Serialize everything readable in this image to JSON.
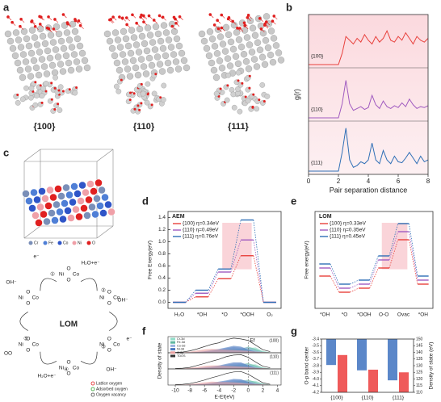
{
  "panel_labels": [
    "a",
    "b",
    "c",
    "d",
    "e",
    "f",
    "g"
  ],
  "panel_a": {
    "facets": [
      "{100}",
      "{110}",
      "{111}"
    ]
  },
  "panel_c": {
    "legend": [
      {
        "name": "Cr",
        "color": "#7a8fb8"
      },
      {
        "name": "Fe",
        "color": "#4f7fd6"
      },
      {
        "name": "Co",
        "color": "#2f55c8"
      },
      {
        "name": "Ni",
        "color": "#f0a0a8"
      },
      {
        "name": "O",
        "color": "#e02020"
      }
    ]
  },
  "lom_cycle": {
    "title": "LOM",
    "atoms": [
      "Ni",
      "Co",
      "O"
    ],
    "annotations": [
      "e⁻",
      "OH⁻",
      "H₂O+e⁻",
      "OH⁻",
      "e⁻",
      "OH⁻",
      "H₂O+e⁻",
      "OO"
    ],
    "steps": [
      "①",
      "②",
      "③",
      "④",
      "⑤"
    ],
    "legend": [
      {
        "name": "Lattice oxygen",
        "color": "#e02020"
      },
      {
        "name": "Adsorbed oxygen",
        "color": "#30a030"
      },
      {
        "name": "Oxygen vacancy",
        "color": "#444444"
      }
    ]
  },
  "chart_data": [
    {
      "type": "line",
      "ylabel": "g(r)",
      "xlabel": "Pair separation distance",
      "xlim": [
        0,
        8
      ],
      "xticks": [
        0,
        2,
        4,
        6,
        8
      ],
      "ylim": [
        0,
        5
      ],
      "x": [
        0,
        0.25,
        0.5,
        0.75,
        1,
        1.25,
        1.5,
        1.75,
        2,
        2.25,
        2.5,
        2.75,
        3,
        3.25,
        3.5,
        3.75,
        4,
        4.25,
        4.5,
        4.75,
        5,
        5.25,
        5.5,
        5.75,
        6,
        6.25,
        6.5,
        6.75,
        7,
        7.25,
        7.5,
        7.75,
        8
      ],
      "series": [
        {
          "name": "{100}",
          "color": "#e8413c",
          "values": [
            0,
            0,
            0,
            0,
            0,
            0,
            0,
            0,
            0,
            1.2,
            3.0,
            2.6,
            2.2,
            2.8,
            2.4,
            3.2,
            2.6,
            2.2,
            3.0,
            2.4,
            2.8,
            3.6,
            2.6,
            2.4,
            3.0,
            2.6,
            3.4,
            2.8,
            2.2,
            3.0,
            2.6,
            2.4,
            2.8
          ]
        },
        {
          "name": "{110}",
          "color": "#a05bc0",
          "values": [
            0,
            0,
            0,
            0,
            0,
            0,
            0,
            0,
            0,
            1.5,
            4.0,
            1.5,
            0.8,
            1.0,
            1.2,
            0.9,
            1.1,
            2.4,
            1.4,
            1.0,
            1.8,
            1.2,
            1.0,
            1.3,
            1.1,
            1.6,
            1.2,
            2.0,
            1.4,
            1.0,
            1.2,
            1.1,
            1.3
          ]
        },
        {
          "name": "{111}",
          "color": "#2f6fb6",
          "values": [
            0,
            0,
            0,
            0,
            0,
            0,
            0,
            0,
            0,
            2.0,
            4.6,
            1.2,
            0.4,
            0.6,
            1.0,
            0.8,
            1.2,
            3.0,
            1.2,
            0.8,
            2.2,
            1.2,
            0.8,
            1.6,
            1.0,
            0.9,
            1.4,
            2.0,
            1.4,
            0.8,
            1.6,
            1.0,
            1.2
          ]
        }
      ]
    },
    {
      "type": "step",
      "label": "AEM",
      "ylabel": "Free Energy(eV)",
      "categories": [
        "H₂O",
        "*OH",
        "*O",
        "*OOH",
        "O₂"
      ],
      "ylim": [
        -0.1,
        1.5
      ],
      "yticks": [
        {
          "value": 0,
          "label": "0.0"
        },
        0.2,
        0.4,
        0.6,
        0.8,
        {
          "value": 1,
          "label": "1.0"
        },
        1.2,
        1.4
      ],
      "series": [
        {
          "name": "{100} η=0.34eV",
          "color": "#e8413c",
          "values": [
            0,
            0.09,
            0.39,
            0.77,
            0
          ]
        },
        {
          "name": "{110} η=0.49eV",
          "color": "#a05bc0",
          "values": [
            0,
            0.15,
            0.5,
            1.03,
            0
          ]
        },
        {
          "name": "{111} η=0.76eV",
          "color": "#2f6fb6",
          "values": [
            0,
            0.2,
            0.55,
            1.36,
            0
          ]
        }
      ]
    },
    {
      "type": "step",
      "label": "LOM",
      "ylabel": "Free energy(eV)",
      "categories": [
        "*OH",
        "*O",
        "*OOH",
        "O-O",
        "Ovac",
        "*OH"
      ],
      "ylim": [
        -0.2,
        1.0
      ],
      "yticks": [],
      "series": [
        {
          "name": "{100} η=0.33eV",
          "color": "#e8413c",
          "values": [
            0.2,
            0.0,
            0.05,
            0.3,
            0.65,
            0.1
          ]
        },
        {
          "name": "{110} η=0.35eV",
          "color": "#a05bc0",
          "values": [
            0.3,
            0.05,
            0.1,
            0.4,
            0.75,
            0.15
          ]
        },
        {
          "name": "{111} η=0.45eV",
          "color": "#2f6fb6",
          "values": [
            0.35,
            0.1,
            0.15,
            0.45,
            0.85,
            0.2
          ]
        }
      ]
    },
    {
      "type": "area",
      "ylabel": "Density of state",
      "xlabel": "E-Ef(eV)",
      "annotation": {
        "text": "Ef",
        "x": 0
      },
      "xlim": [
        -11,
        4.5
      ],
      "xticks": [
        -10,
        -8,
        -6,
        -4,
        -2,
        0,
        2,
        4
      ],
      "ylim": [
        0,
        4.2
      ],
      "x": [
        -10,
        -9,
        -8,
        -7,
        -6,
        -5,
        -4,
        -3,
        -2,
        -1,
        0,
        1,
        2,
        3
      ],
      "legend": [
        {
          "name": "Cr-3d",
          "color": "#8fdcc8"
        },
        {
          "name": "Fe-3d",
          "color": "#5fb7a0"
        },
        {
          "name": "Co-3d",
          "color": "#9cb4e0"
        },
        {
          "name": "Ni-3d",
          "color": "#4a78c0"
        },
        {
          "name": "O-2p",
          "color": "#e8a0a0"
        },
        {
          "name": "TDOS",
          "color": "#333333"
        }
      ],
      "strips": [
        {
          "label": "(100)",
          "values": [
            [
              0,
              0,
              0,
              0.1,
              0.1,
              0.2,
              0.3,
              0.5,
              0.6,
              0.7,
              1.2,
              1.4,
              0.5,
              0.1
            ],
            [
              0,
              0,
              0.1,
              0.1,
              0.2,
              0.4,
              0.6,
              0.9,
              1.1,
              1.0,
              1.6,
              1.0,
              0.3,
              0.1
            ],
            [
              0,
              0,
              0.1,
              0.2,
              0.3,
              0.5,
              0.8,
              1.2,
              1.5,
              1.3,
              1.4,
              0.6,
              0.2,
              0
            ],
            [
              0,
              0,
              0.1,
              0.2,
              0.4,
              0.7,
              1.0,
              1.4,
              1.8,
              1.6,
              0.8,
              0.3,
              0.1,
              0
            ],
            [
              0.05,
              0.1,
              0.3,
              0.6,
              0.9,
              1.0,
              0.9,
              0.8,
              0.7,
              0.6,
              0.5,
              0.3,
              0.2,
              0.1
            ],
            [
              0.1,
              0.2,
              0.5,
              1.0,
              1.6,
              2.2,
              2.6,
              3.4,
              3.8,
              3.6,
              3.2,
              2.0,
              0.8,
              0.3
            ]
          ]
        },
        {
          "label": "(110)",
          "values": [
            [
              0,
              0,
              0,
              0.1,
              0.1,
              0.2,
              0.3,
              0.4,
              0.6,
              0.8,
              1.1,
              1.2,
              0.4,
              0.1
            ],
            [
              0,
              0,
              0.1,
              0.1,
              0.2,
              0.3,
              0.5,
              0.8,
              1.0,
              1.2,
              1.5,
              0.9,
              0.3,
              0.1
            ],
            [
              0,
              0,
              0.1,
              0.2,
              0.3,
              0.5,
              0.7,
              1.1,
              1.4,
              1.5,
              1.2,
              0.5,
              0.2,
              0
            ],
            [
              0,
              0,
              0.1,
              0.2,
              0.4,
              0.6,
              0.9,
              1.3,
              1.7,
              1.7,
              0.9,
              0.3,
              0.1,
              0
            ],
            [
              0.05,
              0.1,
              0.3,
              0.5,
              0.8,
              0.9,
              0.9,
              0.8,
              0.7,
              0.6,
              0.5,
              0.3,
              0.2,
              0.1
            ],
            [
              0.1,
              0.2,
              0.4,
              0.9,
              1.4,
              2.0,
              2.5,
              3.2,
              3.6,
              3.7,
              3.0,
              1.8,
              0.7,
              0.3
            ]
          ]
        },
        {
          "label": "(111)",
          "values": [
            [
              0,
              0,
              0,
              0.1,
              0.1,
              0.2,
              0.2,
              0.4,
              0.5,
              0.7,
              1.0,
              1.1,
              0.4,
              0.1
            ],
            [
              0,
              0,
              0.1,
              0.1,
              0.2,
              0.3,
              0.5,
              0.7,
              0.9,
              1.1,
              1.4,
              0.8,
              0.3,
              0.1
            ],
            [
              0,
              0,
              0.1,
              0.2,
              0.3,
              0.4,
              0.7,
              1.0,
              1.3,
              1.4,
              1.1,
              0.5,
              0.2,
              0
            ],
            [
              0,
              0,
              0.1,
              0.2,
              0.3,
              0.6,
              0.9,
              1.2,
              1.6,
              1.5,
              0.8,
              0.3,
              0.1,
              0
            ],
            [
              0.05,
              0.1,
              0.2,
              0.5,
              0.7,
              0.9,
              0.8,
              0.8,
              0.7,
              0.6,
              0.4,
              0.3,
              0.2,
              0.1
            ],
            [
              0.1,
              0.2,
              0.4,
              0.8,
              1.3,
              1.9,
              2.4,
              3.0,
              3.4,
              3.5,
              2.8,
              1.7,
              0.6,
              0.2
            ]
          ]
        }
      ]
    },
    {
      "type": "bar",
      "categories": [
        "{100}",
        "{110}",
        "{111}"
      ],
      "ylim": [
        -4.2,
        -3.4
      ],
      "yticks": [
        -3.4,
        -3.5,
        -3.6,
        -3.7,
        -3.8,
        -3.9,
        {
          "value": -4,
          "label": "-4.0"
        },
        -4.1,
        -4.2
      ],
      "y2lim": [
        110,
        150
      ],
      "y2ticks": [
        110,
        115,
        120,
        125,
        130,
        135,
        140,
        145,
        150
      ],
      "series": [
        {
          "name": "O-p band center",
          "color": "#5b87c9",
          "values": [
            -3.79,
            -3.87,
            -4.02
          ]
        },
        {
          "name": "Density of state (eV)",
          "color": "#ef5a5a",
          "axis": "y2",
          "values": [
            138,
            127,
            125
          ]
        }
      ]
    }
  ]
}
